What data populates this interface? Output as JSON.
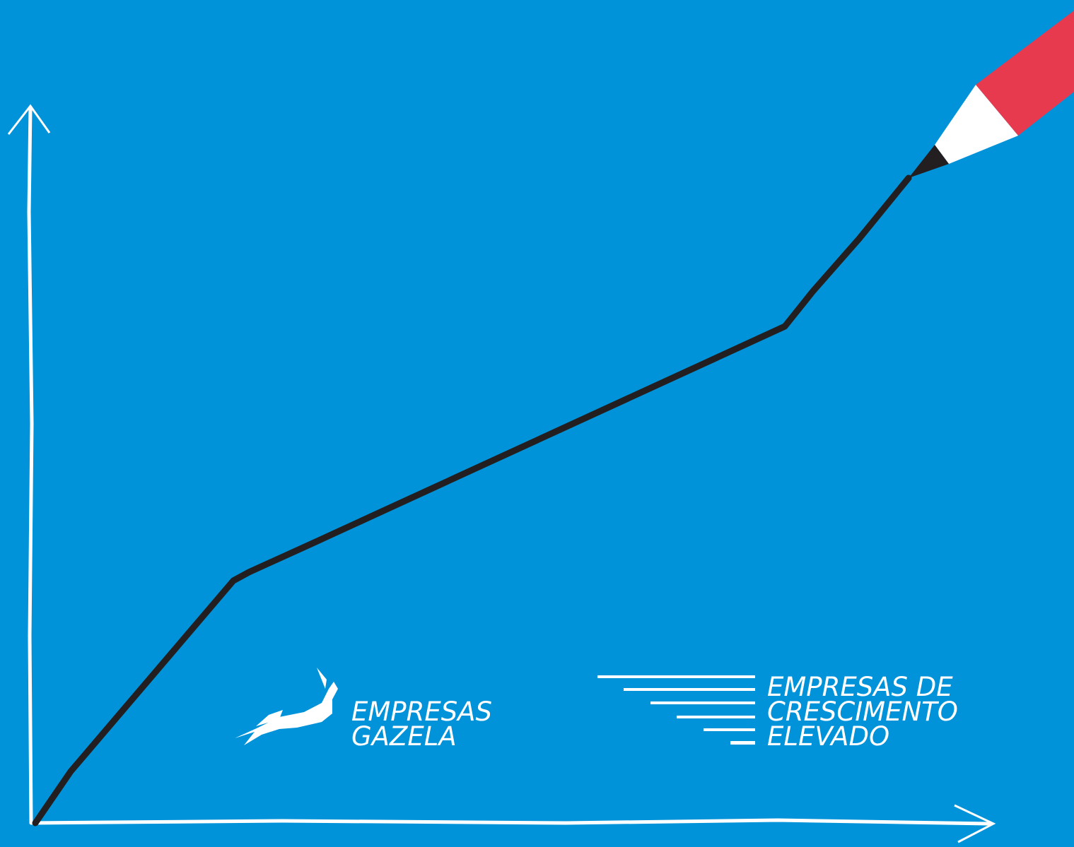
{
  "logos": [
    {
      "lines": [
        "EMPRESAS",
        "GAZELA"
      ]
    },
    {
      "lines": [
        "EMPRESAS DE",
        "CRESCIMENTO",
        "ELEVADO"
      ]
    }
  ]
}
